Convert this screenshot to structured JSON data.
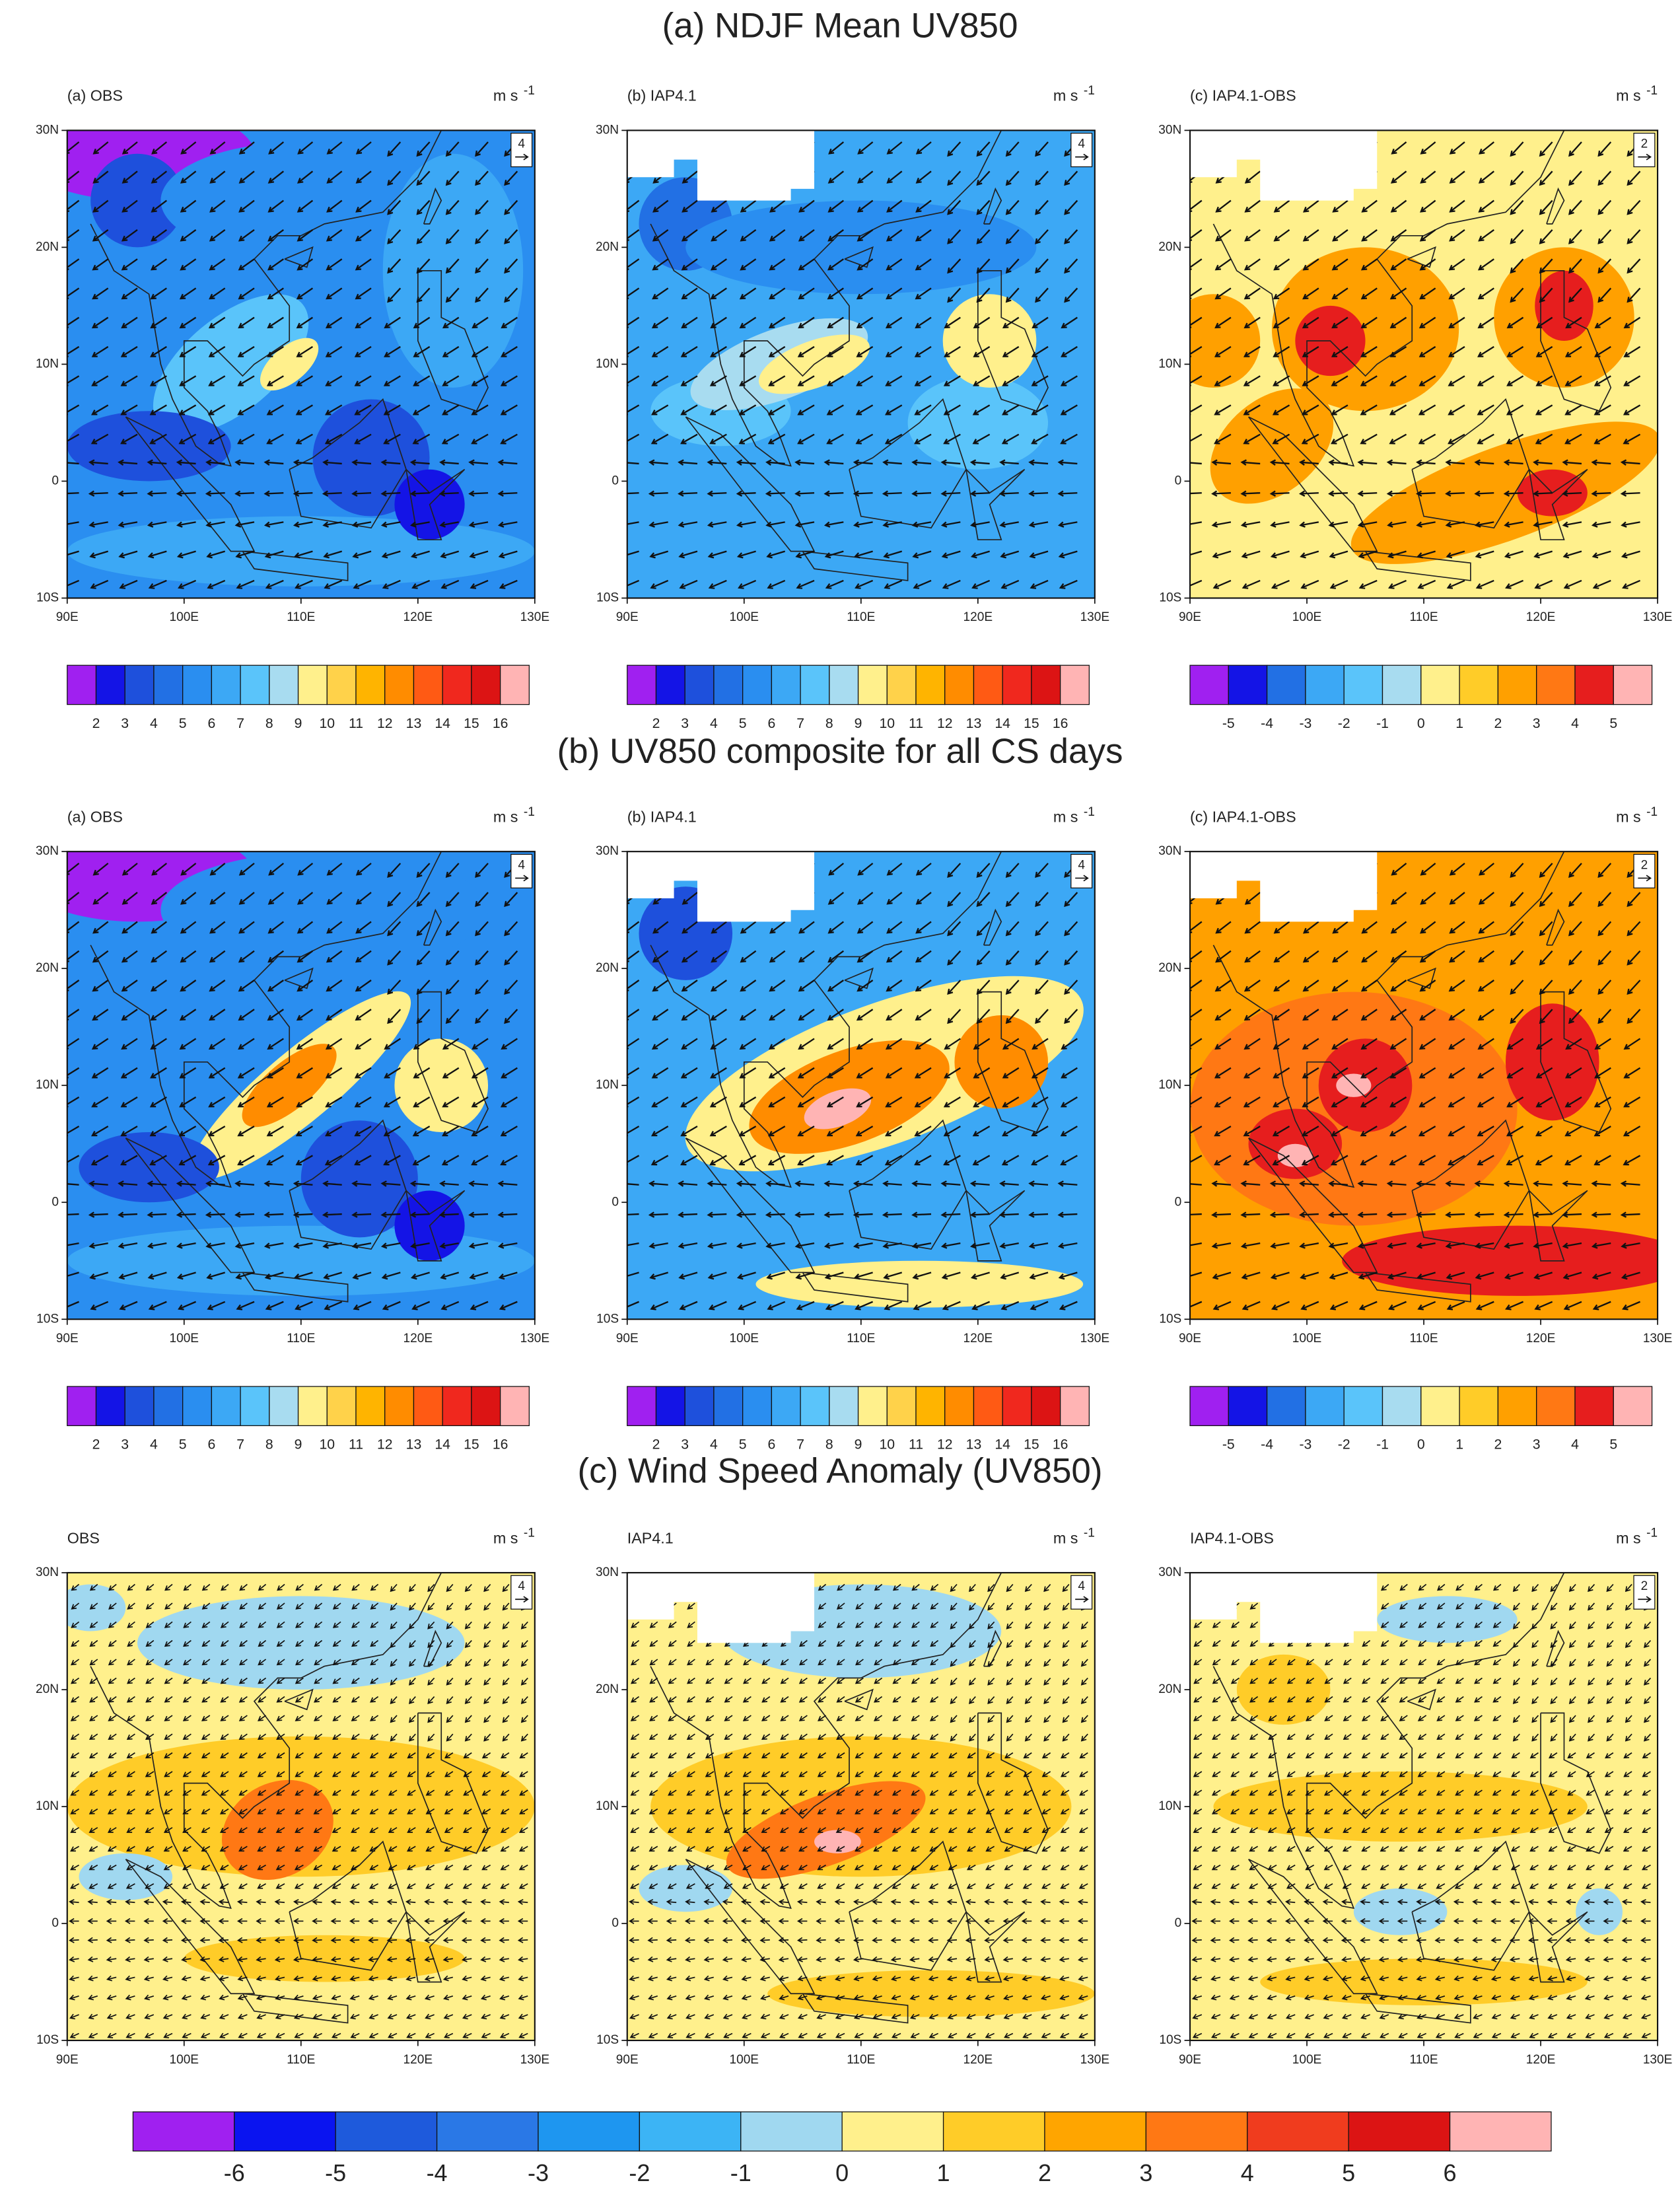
{
  "lon_ticks": [
    "90E",
    "100E",
    "110E",
    "120E",
    "130E"
  ],
  "lat_ticks": [
    "30N",
    "20N",
    "10N",
    "0",
    "10S"
  ],
  "palettes": {
    "speed": [
      "#a020f0",
      "#1414e6",
      "#1e50dc",
      "#2270e4",
      "#2a8ef0",
      "#3ca8f5",
      "#5ac4fa",
      "#a8dcf0",
      "#fff08c",
      "#ffd24a",
      "#ffb400",
      "#ff8c00",
      "#ff5a14",
      "#f0281e",
      "#dc1414",
      "#ffb4b4"
    ],
    "diff": [
      "#a020f0",
      "#1414e6",
      "#2270e4",
      "#3ca8f5",
      "#5ac4fa",
      "#a8dcf0",
      "#fff08c",
      "#ffcc28",
      "#ffa000",
      "#ff7814",
      "#e61e1e",
      "#ffb4b4"
    ],
    "anomaly": [
      "#a020f0",
      "#0a14f0",
      "#1e5adc",
      "#2a78e6",
      "#1e96f0",
      "#3cb4f5",
      "#a0d8f0",
      "#fff08c",
      "#ffcc28",
      "#ffa500",
      "#ff7814",
      "#f03c1e",
      "#dc1414",
      "#ffb4b4"
    ]
  },
  "sections": [
    {
      "title": "(a) NDJF Mean UV850",
      "panels": [
        {
          "label": "(a) OBS",
          "unit": "m s",
          "unit_exp": "-1",
          "ref": "4"
        },
        {
          "label": "(b) IAP4.1",
          "unit": "m s",
          "unit_exp": "-1",
          "ref": "4"
        },
        {
          "label": "(c) IAP4.1-OBS",
          "unit": "m s",
          "unit_exp": "-1",
          "ref": "2"
        }
      ],
      "colorbars": [
        {
          "palette": "speed",
          "labels": [
            2,
            3,
            4,
            5,
            6,
            7,
            8,
            9,
            10,
            11,
            12,
            13,
            14,
            15,
            16
          ]
        },
        {
          "palette": "speed",
          "labels": [
            2,
            3,
            4,
            5,
            6,
            7,
            8,
            9,
            10,
            11,
            12,
            13,
            14,
            15,
            16
          ]
        },
        {
          "palette": "diff",
          "labels": [
            -5,
            -4,
            -3,
            -2,
            -1,
            0,
            1,
            2,
            3,
            4,
            5
          ]
        }
      ]
    },
    {
      "title": "(b) UV850 composite for all CS days",
      "panels": [
        {
          "label": "(a) OBS",
          "unit": "m s",
          "unit_exp": "-1",
          "ref": "4"
        },
        {
          "label": "(b) IAP4.1",
          "unit": "m s",
          "unit_exp": "-1",
          "ref": "4"
        },
        {
          "label": "(c) IAP4.1-OBS",
          "unit": "m s",
          "unit_exp": "-1",
          "ref": "2"
        }
      ],
      "colorbars": [
        {
          "palette": "speed",
          "labels": [
            2,
            3,
            4,
            5,
            6,
            7,
            8,
            9,
            10,
            11,
            12,
            13,
            14,
            15,
            16
          ]
        },
        {
          "palette": "speed",
          "labels": [
            2,
            3,
            4,
            5,
            6,
            7,
            8,
            9,
            10,
            11,
            12,
            13,
            14,
            15,
            16
          ]
        },
        {
          "palette": "diff",
          "labels": [
            -5,
            -4,
            -3,
            -2,
            -1,
            0,
            1,
            2,
            3,
            4,
            5
          ]
        }
      ]
    },
    {
      "title": "(c) Wind Speed Anomaly (UV850)",
      "panels": [
        {
          "label": "OBS",
          "unit": "m s",
          "unit_exp": "-1",
          "ref": "4"
        },
        {
          "label": "IAP4.1",
          "unit": "m s",
          "unit_exp": "-1",
          "ref": "4"
        },
        {
          "label": "IAP4.1-OBS",
          "unit": "m s",
          "unit_exp": "-1",
          "ref": "2"
        }
      ],
      "colorbars": [
        {
          "palette": "anomaly",
          "labels": [
            -6,
            -5,
            -4,
            -3,
            -2,
            -1,
            0,
            1,
            2,
            3,
            4,
            5,
            6
          ]
        }
      ]
    }
  ]
}
